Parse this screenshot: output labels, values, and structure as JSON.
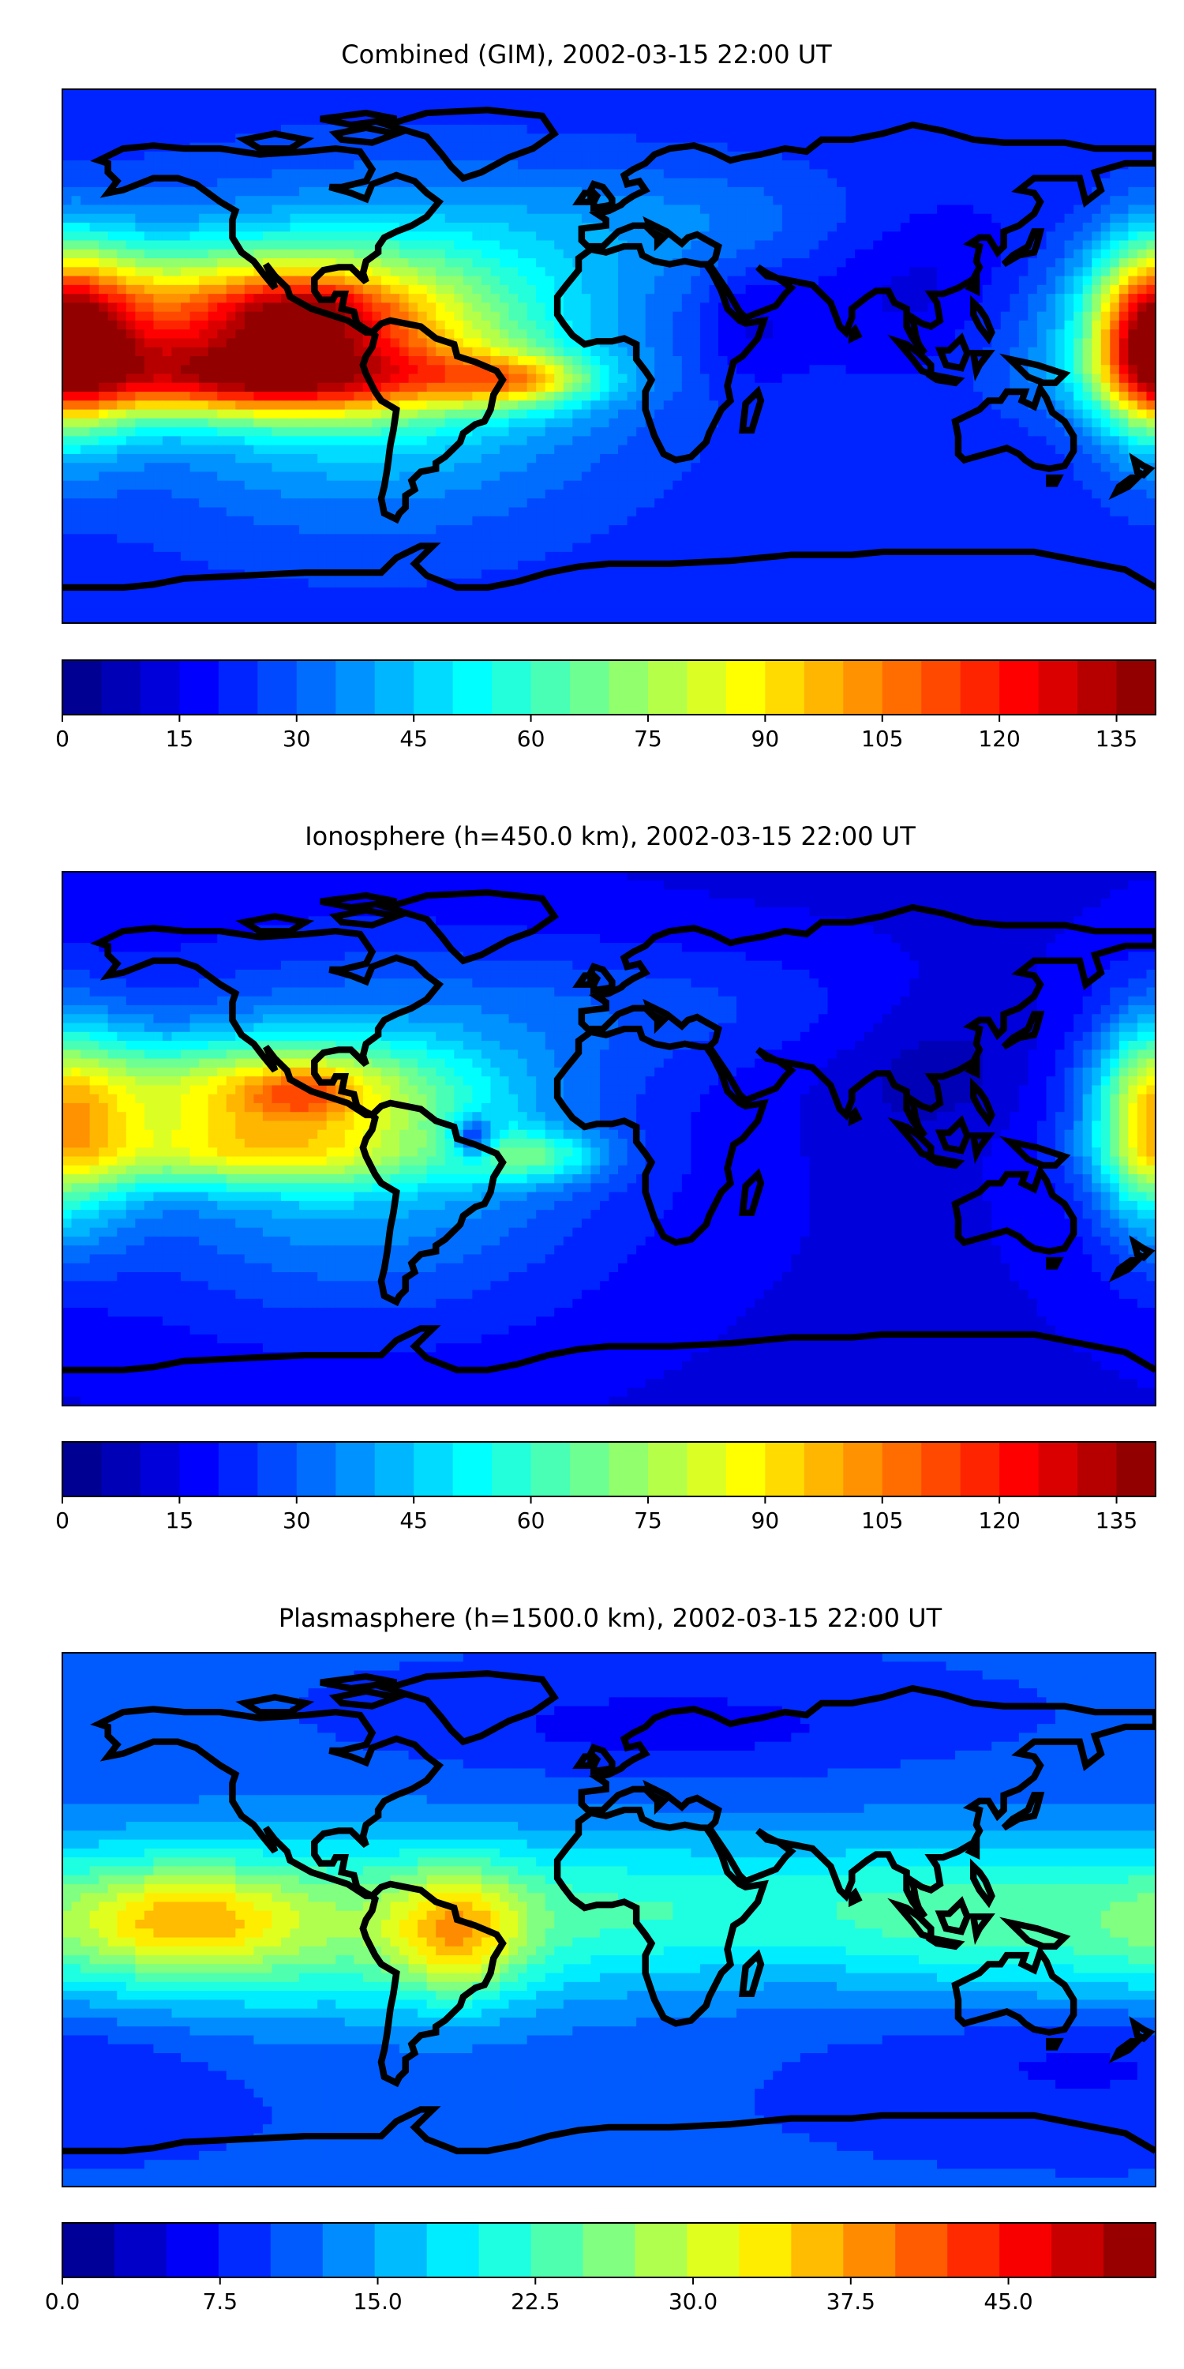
{
  "panels": [
    {
      "title": "Combined (GIM), 2002-03-15 22:00 UT",
      "colorbar_ticks": [
        "0",
        "15",
        "30",
        "45",
        "60",
        "75",
        "90",
        "105",
        "120",
        "135"
      ],
      "colorbar_range": [
        0,
        140
      ],
      "colorbar_levels": 28,
      "field": {
        "base": 22,
        "min": 2,
        "max": 138,
        "blobs": [
          {
            "lon": -120,
            "lat": 12,
            "sx": 55,
            "sy": 17,
            "a": 70
          },
          {
            "lon": -100,
            "lat": 15,
            "sx": 18,
            "sy": 8,
            "a": 25
          },
          {
            "lon": -115,
            "lat": -8,
            "sx": 50,
            "sy": 9,
            "a": 60
          },
          {
            "lon": -30,
            "lat": -8,
            "sx": 18,
            "sy": 6,
            "a": 40
          },
          {
            "lon": -80,
            "lat": 0,
            "sx": 55,
            "sy": 35,
            "a": 35
          },
          {
            "lon": 175,
            "lat": 5,
            "sx": 12,
            "sy": 22,
            "a": 55
          },
          {
            "lon": -170,
            "lat": 5,
            "sx": 14,
            "sy": 22,
            "a": 45
          },
          {
            "lon": 45,
            "lat": 10,
            "sx": 12,
            "sy": 14,
            "a": -10
          },
          {
            "lon": 105,
            "lat": 25,
            "sx": 30,
            "sy": 22,
            "a": -12
          },
          {
            "lon": 20,
            "lat": 45,
            "sx": 60,
            "sy": 15,
            "a": 12
          }
        ]
      }
    },
    {
      "title": "Ionosphere  (h=450.0 km), 2002-03-15 22:00 UT",
      "colorbar_ticks": [
        "0",
        "15",
        "30",
        "45",
        "60",
        "75",
        "90",
        "105",
        "120",
        "135"
      ],
      "colorbar_range": [
        0,
        140
      ],
      "colorbar_levels": 28,
      "field": {
        "base": 14,
        "min": 2,
        "max": 110,
        "blobs": [
          {
            "lon": -115,
            "lat": 15,
            "sx": 45,
            "sy": 13,
            "a": 55
          },
          {
            "lon": -100,
            "lat": 16,
            "sx": 12,
            "sy": 6,
            "a": 20
          },
          {
            "lon": -120,
            "lat": -6,
            "sx": 45,
            "sy": 8,
            "a": 35
          },
          {
            "lon": -25,
            "lat": -6,
            "sx": 16,
            "sy": 6,
            "a": 30
          },
          {
            "lon": -85,
            "lat": 0,
            "sx": 60,
            "sy": 40,
            "a": 32
          },
          {
            "lon": 175,
            "lat": 5,
            "sx": 12,
            "sy": 25,
            "a": 38
          },
          {
            "lon": -170,
            "lat": 5,
            "sx": 14,
            "sy": 25,
            "a": 30
          },
          {
            "lon": -45,
            "lat": 0,
            "sx": 5,
            "sy": 5,
            "a": -35
          },
          {
            "lon": 110,
            "lat": 25,
            "sx": 25,
            "sy": 20,
            "a": -8
          },
          {
            "lon": 20,
            "lat": 45,
            "sx": 60,
            "sy": 15,
            "a": 10
          }
        ]
      }
    },
    {
      "title": "Plasmasphere (h=1500.0 km), 2002-03-15 22:00 UT",
      "colorbar_ticks": [
        "0.0",
        "7.5",
        "15.0",
        "22.5",
        "30.0",
        "37.5",
        "45.0"
      ],
      "colorbar_range": [
        0,
        52
      ],
      "colorbar_levels": 21,
      "field": {
        "base": 10,
        "min": 1,
        "max": 40,
        "blobs": [
          {
            "lon": -110,
            "lat": -2,
            "sx": 80,
            "sy": 22,
            "a": 15
          },
          {
            "lon": -140,
            "lat": 0,
            "sx": 25,
            "sy": 12,
            "a": 12
          },
          {
            "lon": -50,
            "lat": -5,
            "sx": 15,
            "sy": 15,
            "a": 14
          },
          {
            "lon": 40,
            "lat": 5,
            "sx": 70,
            "sy": 18,
            "a": 8
          },
          {
            "lon": 120,
            "lat": 0,
            "sx": 50,
            "sy": 20,
            "a": 6
          },
          {
            "lon": 20,
            "lat": 65,
            "sx": 50,
            "sy": 10,
            "a": -4
          },
          {
            "lon": 160,
            "lat": -45,
            "sx": 50,
            "sy": 15,
            "a": -4
          }
        ]
      }
    }
  ]
}
